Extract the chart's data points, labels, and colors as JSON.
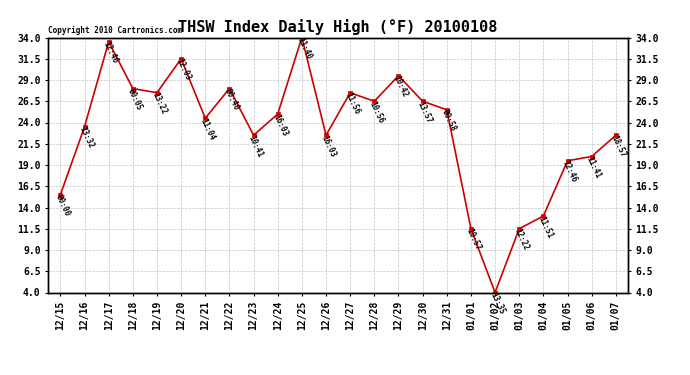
{
  "title": "THSW Index Daily High (°F) 20100108",
  "copyright": "Copyright 2010 Cartronics.com",
  "x_labels": [
    "12/15",
    "12/16",
    "12/17",
    "12/18",
    "12/19",
    "12/20",
    "12/21",
    "12/22",
    "12/23",
    "12/24",
    "12/25",
    "12/26",
    "12/27",
    "12/28",
    "12/29",
    "12/30",
    "12/31",
    "01/01",
    "01/02",
    "01/03",
    "01/04",
    "01/05",
    "01/06",
    "01/07"
  ],
  "y_values": [
    15.5,
    23.5,
    33.5,
    28.0,
    27.5,
    31.5,
    24.5,
    28.0,
    22.5,
    25.0,
    34.0,
    22.5,
    27.5,
    26.5,
    29.5,
    26.5,
    25.5,
    11.5,
    4.0,
    11.5,
    13.0,
    19.5,
    20.0,
    22.5
  ],
  "point_labels": [
    "00:00",
    "13:32",
    "12:46",
    "00:05",
    "13:22",
    "12:03",
    "11:04",
    "00:40",
    "10:41",
    "16:03",
    "11:40",
    "16:03",
    "11:56",
    "10:56",
    "10:42",
    "13:57",
    "00:58",
    "10:57",
    "13:35",
    "12:22",
    "11:51",
    "12:46",
    "11:41",
    "18:57"
  ],
  "ylim": [
    4.0,
    34.0
  ],
  "yticks": [
    4.0,
    6.5,
    9.0,
    11.5,
    14.0,
    16.5,
    19.0,
    21.5,
    24.0,
    26.5,
    29.0,
    31.5,
    34.0
  ],
  "line_color": "#cc0000",
  "marker_color": "#cc0000",
  "bg_color": "#ffffff",
  "grid_color": "#aaaaaa",
  "title_fontsize": 11,
  "tick_fontsize": 7,
  "label_fontsize": 6.5
}
